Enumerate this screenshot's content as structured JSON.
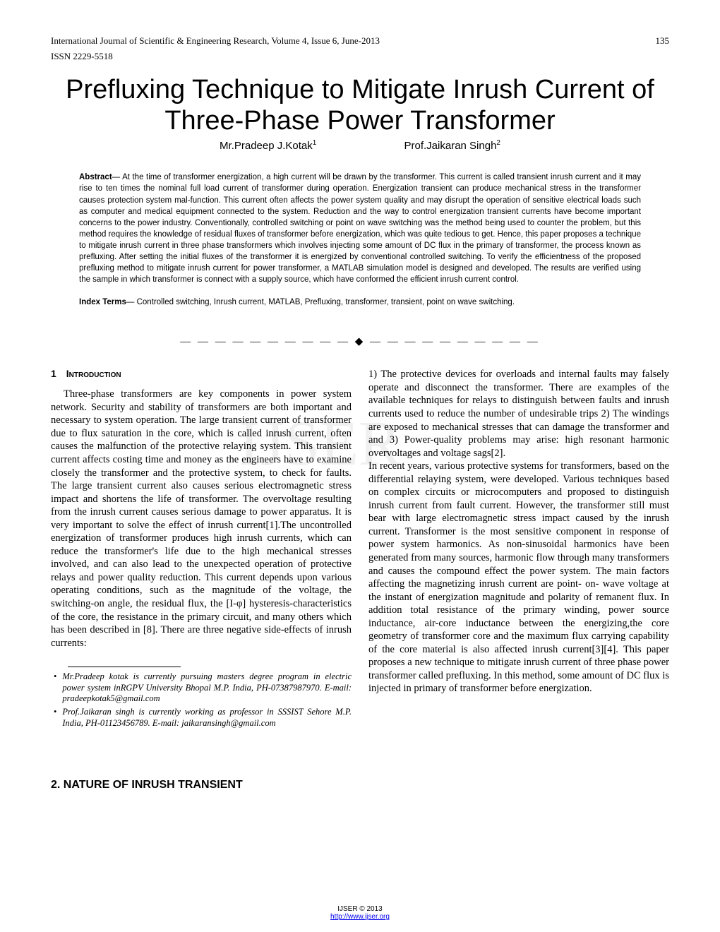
{
  "header": {
    "journal": "International Journal of Scientific & Engineering Research, Volume 4, Issue 6, June-2013",
    "page_number": "135",
    "issn": "ISSN 2229-5518"
  },
  "title": "Prefluxing Technique to Mitigate Inrush Current of Three-Phase Power Transformer",
  "authors": {
    "a1_name": "Mr.Pradeep J.Kotak",
    "a1_sup": "1",
    "a2_name": "Prof.Jaikaran Singh",
    "a2_sup": "2"
  },
  "abstract": {
    "label": "Abstract",
    "text": "— At the time of transformer energization, a high current will be drawn by the transformer. This current is called transient inrush current and it may rise to ten times the nominal full load current of transformer during operation. Energization transient can produce mechanical stress in the transformer causes protection system mal-function. This current often affects the power system quality and may disrupt the operation of sensitive electrical loads such as computer and medical equipment connected to the system. Reduction and the way to control energization transient currents have become important concerns to the power industry. Conventionally, controlled switching or point on wave switching was the method being used to counter the problem, but this method requires the knowledge of residual fluxes of transformer before energization, which was quite tedious to get. Hence, this paper proposes a technique to mitigate inrush current in three phase transformers which involves injecting some amount of DC flux in the primary of transformer, the process known as prefluxing. After setting the initial fluxes of the transformer it is energized by conventional controlled switching. To verify the efficientness of the proposed prefluxing method to mitigate inrush current for power transformer, a MATLAB simulation model is designed and developed. The results are verified using the sample in which transformer is connect with a supply source, which have conformed the efficient inrush current control."
  },
  "index_terms": {
    "label": "Index Terms",
    "text": "— Controlled switching, Inrush current, MATLAB, Prefluxing, transformer, transient, point on wave switching."
  },
  "separator": "— — — — — — — — — —  ◆  — — — — — — — — — —",
  "section1": {
    "number": "1",
    "heading": "Introduction",
    "col1": "Three-phase transformers are key components in power system network. Security and stability of transformers are both important and necessary to system operation. The large transient current of transformer due to flux saturation in the core, which is called inrush current, often causes the malfunction of the protective relaying system. This transient current affects costing time and money as the engineers have to examine closely the transformer and the protective system, to check for faults. The large transient current also causes serious electromagnetic stress impact and shortens the life of transformer. The overvoltage resulting from the inrush current causes serious damage to power apparatus. It is very important to solve the effect of inrush current[1].The uncontrolled energization of transformer produces high inrush currents, which can reduce the transformer's life due to the high mechanical stresses involved, and can also lead to the unexpected operation of protective relays and power quality reduction. This current depends upon various operating conditions, such as the magnitude of the voltage, the switching-on angle, the residual flux, the [I-φ] hysteresis-characteristics of the core, the resistance in the primary circuit, and many others which has been described in [8]. There are three negative side-effects of inrush currents:",
    "col2_p1": " 1) The protective devices for overloads and internal faults may falsely operate and disconnect the transformer. There are examples of the available techniques for relays to distinguish between faults and inrush currents used to reduce the number of undesirable trips 2) The windings are exposed to mechanical stresses that can damage the transformer and and 3) Power-quality problems may arise: high resonant harmonic overvoltages and voltage sags[2].",
    "col2_p2": "In recent years, various protective systems for transformers, based on the differential relaying system, were developed. Various techniques based on complex circuits or microcomputers and proposed to distinguish inrush current from fault current. However, the transformer still must bear with large electromagnetic stress impact caused by the inrush current. Transformer is the most sensitive component in response of power system harmonics. As non-sinusoidal harmonics have been generated from many sources, harmonic flow through many transformers and causes the compound effect the power system. The main factors affecting the magnetizing inrush current are point- on- wave voltage at the instant of energization magnitude and polarity of remanent flux. In addition total resistance of the primary winding, power source inductance, air-core inductance between the energizing,the core geometry of transformer core and the maximum flux carrying capability of the core material is also affected inrush current[3][4]. This paper proposes a new technique to mitigate inrush current of three phase power transformer called prefluxing. In this method, some amount of DC flux is injected in primary of transformer before energization."
  },
  "footnotes": {
    "f1": "Mr.Pradeep kotak is currently pursuing masters degree program in electric power system inRGPV University Bhopal M.P. India, PH-07387987970. E-mail: pradeepkotak5@gmail.com",
    "f2": "Prof.Jaikaran singh is currently working as professor in SSSIST Sehore M.P. India, PH-01123456789. E-mail: jaikaransingh@gmail.com"
  },
  "section2": {
    "heading": "2. NATURE OF INRUSH TRANSIENT"
  },
  "watermark": "IJSER",
  "footer": {
    "copyright": "IJSER © 2013",
    "url": "http://www.ijser.org"
  }
}
